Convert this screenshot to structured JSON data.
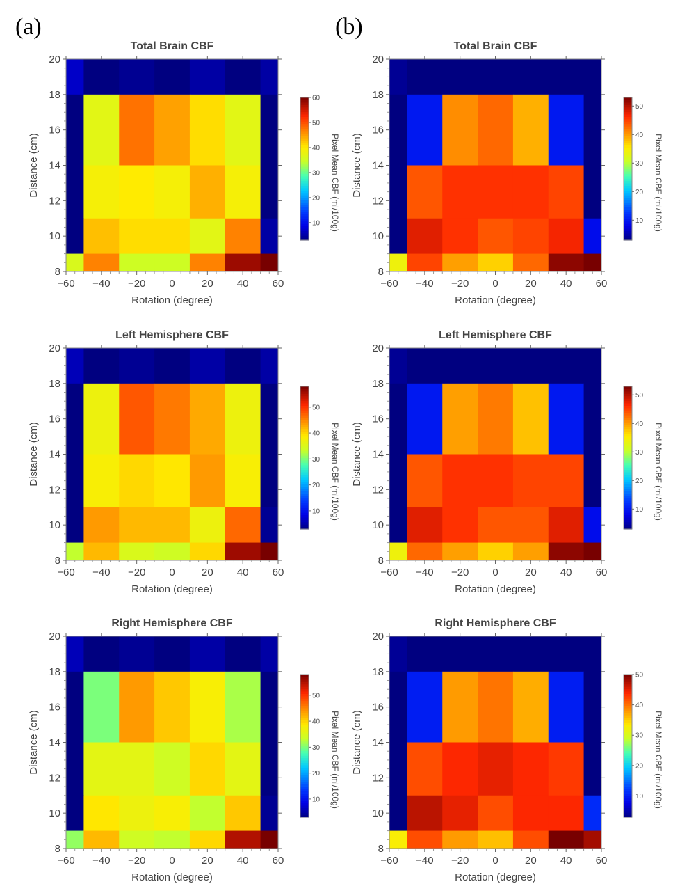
{
  "panel_labels": [
    "(a)",
    "(b)"
  ],
  "colorbar_label": "Pixel Mean CBF (ml/100g)",
  "chart_data": [
    {
      "type": "heatmap",
      "panel": "(a)",
      "title": "Total Brain CBF",
      "xlabel": "Rotation (degree)",
      "ylabel": "Distance (cm)",
      "x_ticks": [
        -60,
        -40,
        -20,
        0,
        20,
        40,
        60
      ],
      "y_ticks": [
        8,
        10,
        12,
        14,
        16,
        18,
        20
      ],
      "x_bin_edges": [
        -60,
        -50,
        -30,
        -10,
        10,
        30,
        50,
        60
      ],
      "y_bin_edges": [
        8,
        9,
        11,
        14,
        18,
        20
      ],
      "columns": [
        -55,
        -40,
        -20,
        0,
        20,
        40,
        55
      ],
      "rows_cm_top_to_bottom": [
        "18-20",
        "14-18",
        "11-14",
        "9-11",
        "8-9"
      ],
      "values": [
        [
          7,
          3,
          4,
          3,
          5,
          3,
          5
        ],
        [
          3,
          37,
          48,
          45,
          41,
          37,
          3
        ],
        [
          3,
          39,
          40,
          39,
          44,
          39,
          3
        ],
        [
          3,
          43,
          41,
          41,
          37,
          47,
          5
        ],
        [
          36,
          47,
          35,
          35,
          47,
          58,
          60
        ]
      ],
      "colorbar": {
        "min": 3,
        "max": 60,
        "ticks": [
          10,
          20,
          30,
          40,
          50,
          60
        ],
        "label": "Pixel Mean CBF (ml/100g)"
      }
    },
    {
      "type": "heatmap",
      "panel": "(b)",
      "title": "Total Brain CBF",
      "xlabel": "Rotation (degree)",
      "ylabel": "Distance (cm)",
      "x_ticks": [
        -60,
        -40,
        -20,
        0,
        20,
        40,
        60
      ],
      "y_ticks": [
        8,
        10,
        12,
        14,
        16,
        18,
        20
      ],
      "x_bin_edges": [
        -60,
        -50,
        -30,
        -10,
        10,
        30,
        50,
        60
      ],
      "y_bin_edges": [
        8,
        9,
        11,
        14,
        18,
        20
      ],
      "columns": [
        -55,
        -40,
        -20,
        0,
        20,
        40,
        55
      ],
      "rows_cm_top_to_bottom": [
        "18-20",
        "14-18",
        "11-14",
        "9-11",
        "8-9"
      ],
      "values": [
        [
          4,
          2,
          3,
          3,
          3,
          2,
          3
        ],
        [
          3,
          10,
          41,
          43,
          39,
          10,
          3
        ],
        [
          3,
          44,
          46,
          46,
          46,
          45,
          3
        ],
        [
          3,
          48,
          46,
          44,
          45,
          47,
          9
        ],
        [
          34,
          45,
          40,
          37,
          43,
          52,
          53
        ]
      ],
      "colorbar": {
        "min": 3,
        "max": 53,
        "ticks": [
          10,
          20,
          30,
          40,
          50
        ],
        "label": "Pixel Mean CBF (ml/100g)"
      }
    },
    {
      "type": "heatmap",
      "panel": "(a)",
      "title": "Left Hemisphere CBF",
      "xlabel": "Rotation (degree)",
      "ylabel": "Distance (cm)",
      "x_ticks": [
        -60,
        -40,
        -20,
        0,
        20,
        40,
        60
      ],
      "y_ticks": [
        8,
        10,
        12,
        14,
        16,
        18,
        20
      ],
      "x_bin_edges": [
        -60,
        -50,
        -30,
        -10,
        10,
        30,
        50,
        60
      ],
      "y_bin_edges": [
        8,
        9,
        11,
        14,
        18,
        20
      ],
      "columns": [
        -55,
        -40,
        -20,
        0,
        20,
        40,
        55
      ],
      "rows_cm_top_to_bottom": [
        "18-20",
        "14-18",
        "11-14",
        "9-11",
        "8-9"
      ],
      "values": [
        [
          6,
          3,
          4,
          3,
          5,
          3,
          5
        ],
        [
          3,
          37,
          48,
          46,
          43,
          37,
          3
        ],
        [
          3,
          38,
          40,
          39,
          44,
          38,
          3
        ],
        [
          3,
          44,
          42,
          42,
          37,
          47,
          4
        ],
        [
          33,
          42,
          35,
          34,
          40,
          56,
          58
        ]
      ],
      "colorbar": {
        "min": 3,
        "max": 58,
        "ticks": [
          10,
          20,
          30,
          40,
          50
        ],
        "label": "Pixel Mean CBF (ml/100g)"
      }
    },
    {
      "type": "heatmap",
      "panel": "(b)",
      "title": "Left Hemisphere CBF",
      "xlabel": "Rotation (degree)",
      "ylabel": "Distance (cm)",
      "x_ticks": [
        -60,
        -40,
        -20,
        0,
        20,
        40,
        60
      ],
      "y_ticks": [
        8,
        10,
        12,
        14,
        16,
        18,
        20
      ],
      "x_bin_edges": [
        -60,
        -50,
        -30,
        -10,
        10,
        30,
        50,
        60
      ],
      "y_bin_edges": [
        8,
        9,
        11,
        14,
        18,
        20
      ],
      "columns": [
        -55,
        -40,
        -20,
        0,
        20,
        40,
        55
      ],
      "rows_cm_top_to_bottom": [
        "18-20",
        "14-18",
        "11-14",
        "9-11",
        "8-9"
      ],
      "values": [
        [
          4,
          2,
          3,
          3,
          3,
          2,
          3
        ],
        [
          3,
          10,
          40,
          42,
          38,
          10,
          3
        ],
        [
          3,
          44,
          46,
          46,
          45,
          45,
          3
        ],
        [
          3,
          48,
          46,
          44,
          44,
          48,
          9
        ],
        [
          34,
          43,
          40,
          37,
          40,
          52,
          53
        ]
      ],
      "colorbar": {
        "min": 3,
        "max": 53,
        "ticks": [
          10,
          20,
          30,
          40,
          50
        ],
        "label": "Pixel Mean CBF (ml/100g)"
      }
    },
    {
      "type": "heatmap",
      "panel": "(a)",
      "title": "Right Hemisphere CBF",
      "xlabel": "Rotation (degree)",
      "ylabel": "Distance (cm)",
      "x_ticks": [
        -60,
        -40,
        -20,
        0,
        20,
        40,
        60
      ],
      "y_ticks": [
        8,
        10,
        12,
        14,
        16,
        18,
        20
      ],
      "x_bin_edges": [
        -60,
        -50,
        -30,
        -10,
        10,
        30,
        50,
        60
      ],
      "y_bin_edges": [
        8,
        9,
        11,
        14,
        18,
        20
      ],
      "columns": [
        -55,
        -40,
        -20,
        0,
        20,
        40,
        55
      ],
      "rows_cm_top_to_bottom": [
        "18-20",
        "14-18",
        "11-14",
        "9-11",
        "8-9"
      ],
      "values": [
        [
          6,
          3,
          4,
          3,
          5,
          3,
          5
        ],
        [
          3,
          30,
          44,
          41,
          38,
          32,
          3
        ],
        [
          3,
          36,
          36,
          34,
          40,
          36,
          3
        ],
        [
          3,
          39,
          37,
          38,
          33,
          41,
          4
        ],
        [
          31,
          42,
          34,
          33,
          40,
          55,
          58
        ]
      ],
      "colorbar": {
        "min": 3,
        "max": 58,
        "ticks": [
          10,
          20,
          30,
          40,
          50
        ],
        "label": "Pixel Mean CBF (ml/100g)"
      }
    },
    {
      "type": "heatmap",
      "panel": "(b)",
      "title": "Right Hemisphere CBF",
      "xlabel": "Rotation (degree)",
      "ylabel": "Distance (cm)",
      "x_ticks": [
        -60,
        -40,
        -20,
        0,
        20,
        40,
        60
      ],
      "y_ticks": [
        8,
        10,
        12,
        14,
        16,
        18,
        20
      ],
      "x_bin_edges": [
        -60,
        -50,
        -30,
        -10,
        10,
        30,
        50,
        60
      ],
      "y_bin_edges": [
        8,
        9,
        11,
        14,
        18,
        20
      ],
      "columns": [
        -55,
        -40,
        -20,
        0,
        20,
        40,
        55
      ],
      "rows_cm_top_to_bottom": [
        "18-20",
        "14-18",
        "11-14",
        "9-11",
        "8-9"
      ],
      "values": [
        [
          4,
          2,
          3,
          3,
          3,
          2,
          3
        ],
        [
          3,
          10,
          38,
          40,
          37,
          10,
          3
        ],
        [
          3,
          42,
          44,
          45,
          44,
          43,
          3
        ],
        [
          3,
          47,
          45,
          42,
          44,
          44,
          11
        ],
        [
          33,
          42,
          38,
          36,
          42,
          50,
          48
        ]
      ],
      "colorbar": {
        "min": 3,
        "max": 50,
        "ticks": [
          10,
          20,
          30,
          40,
          50
        ],
        "label": "Pixel Mean CBF (ml/100g)"
      }
    }
  ]
}
